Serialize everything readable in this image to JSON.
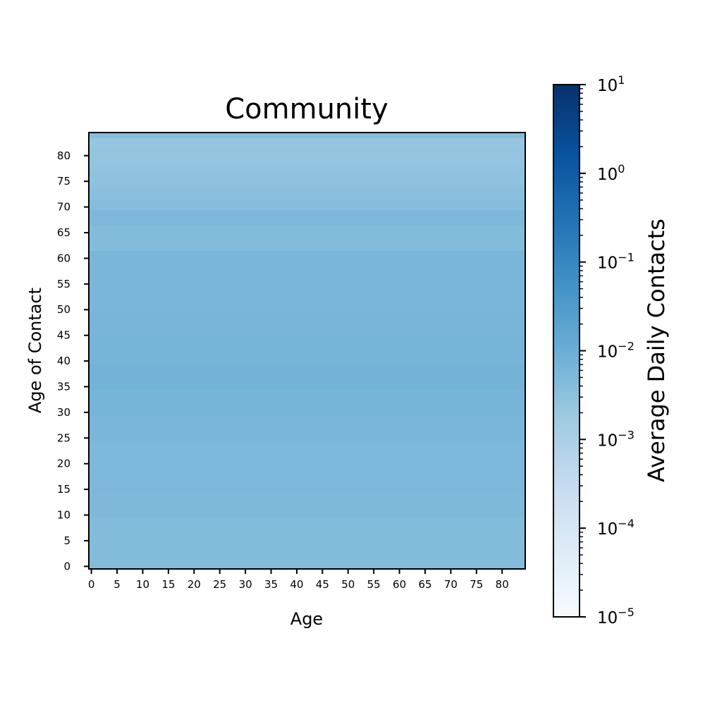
{
  "chart_data": {
    "type": "heatmap",
    "title": "Community",
    "xlabel": "Age",
    "ylabel": "Age of Contact",
    "x_ticks": [
      "0",
      "5",
      "10",
      "15",
      "20",
      "25",
      "30",
      "35",
      "40",
      "45",
      "50",
      "55",
      "60",
      "65",
      "70",
      "75",
      "80"
    ],
    "y_ticks": [
      "0",
      "5",
      "10",
      "15",
      "20",
      "25",
      "30",
      "35",
      "40",
      "45",
      "50",
      "55",
      "60",
      "65",
      "70",
      "75",
      "80"
    ],
    "age_range": [
      0,
      84
    ],
    "row_values_by_contact_age": [
      0.0045,
      0.0045,
      0.0045,
      0.0045,
      0.0045,
      0.0045,
      0.0045,
      0.0045,
      0.0045,
      0.0045,
      0.005,
      0.005,
      0.005,
      0.005,
      0.005,
      0.0055,
      0.0055,
      0.0055,
      0.0055,
      0.0055,
      0.0055,
      0.0055,
      0.0055,
      0.0055,
      0.0055,
      0.006,
      0.006,
      0.006,
      0.006,
      0.006,
      0.007,
      0.007,
      0.007,
      0.007,
      0.007,
      0.0075,
      0.0075,
      0.0075,
      0.0075,
      0.0075,
      0.007,
      0.007,
      0.007,
      0.007,
      0.007,
      0.0065,
      0.0065,
      0.0065,
      0.0065,
      0.0065,
      0.006,
      0.006,
      0.006,
      0.006,
      0.006,
      0.006,
      0.006,
      0.006,
      0.006,
      0.006,
      0.006,
      0.006,
      0.0045,
      0.0045,
      0.0045,
      0.0045,
      0.0045,
      0.0055,
      0.0055,
      0.0055,
      0.004,
      0.004,
      0.0035,
      0.0035,
      0.0032,
      0.003,
      0.003,
      0.0028,
      0.0026,
      0.0025,
      0.0025,
      0.0025,
      0.0023,
      0.0023,
      0.004
    ],
    "colorbar": {
      "label": "Average Daily Contacts",
      "scale": "log",
      "range": [
        1e-05,
        10
      ],
      "colormap": "Blues",
      "tick_exponents": [
        "−5",
        "−4",
        "−3",
        "−2",
        "−1",
        "0",
        "1"
      ],
      "tick_base": "10"
    },
    "grid": false
  }
}
